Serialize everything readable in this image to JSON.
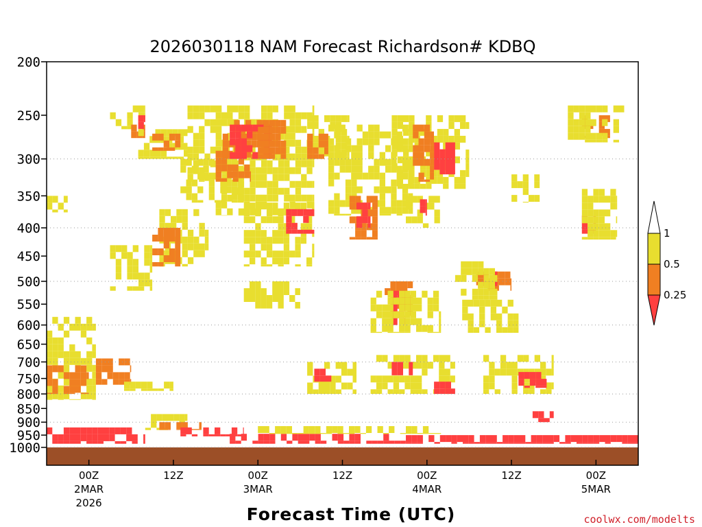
{
  "chart_data": {
    "type": "heatmap",
    "title": "2026030118 NAM Forecast Richardson# KDBQ",
    "xlabel": "Forecast Time (UTC)",
    "ylabel": "",
    "y_axis": {
      "scale": "log-pressure",
      "range": [
        1000,
        200
      ],
      "ticks": [
        "200",
        "250",
        "300",
        "350",
        "400",
        "450",
        "500",
        "550",
        "600",
        "650",
        "700",
        "750",
        "800",
        "850",
        "900",
        "950",
        "1000"
      ],
      "gridlines_at": [
        300,
        400,
        500,
        600,
        700,
        800,
        900,
        1000
      ]
    },
    "x_axis": {
      "range_hours": [
        -6,
        78
      ],
      "ticks": [
        {
          "hour": 0,
          "lines": [
            "00Z",
            "2MAR",
            "2026"
          ]
        },
        {
          "hour": 12,
          "lines": [
            "12Z"
          ]
        },
        {
          "hour": 24,
          "lines": [
            "00Z",
            "3MAR"
          ]
        },
        {
          "hour": 36,
          "lines": [
            "12Z"
          ]
        },
        {
          "hour": 48,
          "lines": [
            "00Z",
            "4MAR"
          ]
        },
        {
          "hour": 60,
          "lines": [
            "12Z"
          ]
        },
        {
          "hour": 72,
          "lines": [
            "00Z",
            "5MAR"
          ]
        }
      ]
    },
    "legend": {
      "placement": "right",
      "labels": [
        "1",
        "0.5",
        "0.25"
      ],
      "bins": [
        {
          "range": "< 0.25",
          "color": "#ff4040"
        },
        {
          "range": "0.25 - 0.5",
          "color": "#f07f22"
        },
        {
          "range": "0.5 - 1",
          "color": "#e8de2f"
        },
        {
          "range": "> 1",
          "color": "#ffffff"
        }
      ]
    },
    "colors": {
      "low": "#ff4040",
      "mid": "#f07f22",
      "high": "#e8de2f",
      "ground": "#9c4f27"
    },
    "regions": [
      {
        "bin": "high",
        "hour": [
          3,
          8
        ],
        "p": [
          240,
          265
        ]
      },
      {
        "bin": "mid",
        "hour": [
          6,
          8
        ],
        "p": [
          260,
          275
        ]
      },
      {
        "bin": "low",
        "hour": [
          7,
          8
        ],
        "p": [
          250,
          265
        ]
      },
      {
        "bin": "high",
        "hour": [
          7,
          14
        ],
        "p": [
          265,
          300
        ]
      },
      {
        "bin": "high",
        "hour": [
          13,
          22
        ],
        "p": [
          300,
          360
        ]
      },
      {
        "bin": "mid",
        "hour": [
          9,
          13
        ],
        "p": [
          270,
          290
        ]
      },
      {
        "bin": "high",
        "hour": [
          14,
          20
        ],
        "p": [
          240,
          330
        ]
      },
      {
        "bin": "high",
        "hour": [
          18,
          32
        ],
        "p": [
          240,
          380
        ]
      },
      {
        "bin": "mid",
        "hour": [
          19,
          25
        ],
        "p": [
          255,
          300
        ]
      },
      {
        "bin": "mid",
        "hour": [
          18,
          23
        ],
        "p": [
          290,
          330
        ]
      },
      {
        "bin": "low",
        "hour": [
          20,
          26
        ],
        "p": [
          260,
          300
        ]
      },
      {
        "bin": "mid",
        "hour": [
          24,
          28
        ],
        "p": [
          255,
          300
        ]
      },
      {
        "bin": "high",
        "hour": [
          31,
          37
        ],
        "p": [
          250,
          300
        ]
      },
      {
        "bin": "mid",
        "hour": [
          31,
          34
        ],
        "p": [
          270,
          300
        ]
      },
      {
        "bin": "high",
        "hour": [
          34,
          46
        ],
        "p": [
          260,
          380
        ]
      },
      {
        "bin": "mid",
        "hour": [
          37,
          41
        ],
        "p": [
          350,
          420
        ]
      },
      {
        "bin": "low",
        "hour": [
          38,
          40
        ],
        "p": [
          360,
          400
        ]
      },
      {
        "bin": "high",
        "hour": [
          43,
          54
        ],
        "p": [
          250,
          340
        ]
      },
      {
        "bin": "mid",
        "hour": [
          46,
          49
        ],
        "p": [
          260,
          330
        ]
      },
      {
        "bin": "low",
        "hour": [
          49,
          52
        ],
        "p": [
          280,
          320
        ]
      },
      {
        "bin": "high",
        "hour": [
          45,
          50
        ],
        "p": [
          350,
          400
        ]
      },
      {
        "bin": "low",
        "hour": [
          47,
          48
        ],
        "p": [
          355,
          380
        ]
      },
      {
        "bin": "high",
        "hour": [
          10,
          17
        ],
        "p": [
          370,
          470
        ]
      },
      {
        "bin": "mid",
        "hour": [
          9,
          13
        ],
        "p": [
          400,
          470
        ]
      },
      {
        "bin": "high",
        "hour": [
          3,
          9
        ],
        "p": [
          430,
          520
        ]
      },
      {
        "bin": "high",
        "hour": [
          -6,
          -3
        ],
        "p": [
          350,
          375
        ]
      },
      {
        "bin": "high",
        "hour": [
          22,
          32
        ],
        "p": [
          360,
          470
        ]
      },
      {
        "bin": "low",
        "hour": [
          28,
          32
        ],
        "p": [
          370,
          410
        ]
      },
      {
        "bin": "high",
        "hour": [
          22,
          30
        ],
        "p": [
          500,
          560
        ]
      },
      {
        "bin": "mid",
        "hour": [
          42,
          46
        ],
        "p": [
          500,
          580
        ]
      },
      {
        "bin": "low",
        "hour": [
          43,
          45
        ],
        "p": [
          520,
          600
        ]
      },
      {
        "bin": "high",
        "hour": [
          40,
          50
        ],
        "p": [
          520,
          620
        ]
      },
      {
        "bin": "mid",
        "hour": [
          55,
          60
        ],
        "p": [
          480,
          520
        ]
      },
      {
        "bin": "low",
        "hour": [
          56,
          58
        ],
        "p": [
          480,
          510
        ]
      },
      {
        "bin": "high",
        "hour": [
          52,
          58
        ],
        "p": [
          460,
          540
        ]
      },
      {
        "bin": "high",
        "hour": [
          53,
          61
        ],
        "p": [
          540,
          620
        ]
      },
      {
        "bin": "high",
        "hour": [
          60,
          64
        ],
        "p": [
          320,
          360
        ]
      },
      {
        "bin": "low",
        "hour": [
          70,
          72
        ],
        "p": [
          380,
          410
        ]
      },
      {
        "bin": "high",
        "hour": [
          70,
          75
        ],
        "p": [
          340,
          420
        ]
      },
      {
        "bin": "mid",
        "hour": [
          70,
          74
        ],
        "p": [
          250,
          275
        ]
      },
      {
        "bin": "high",
        "hour": [
          68,
          76
        ],
        "p": [
          240,
          280
        ]
      },
      {
        "bin": "high",
        "hour": [
          -6,
          1
        ],
        "p": [
          580,
          820
        ]
      },
      {
        "bin": "mid",
        "hour": [
          -6,
          0
        ],
        "p": [
          710,
          800
        ]
      },
      {
        "bin": "mid",
        "hour": [
          1,
          6
        ],
        "p": [
          690,
          770
        ]
      },
      {
        "bin": "high",
        "hour": [
          5,
          12
        ],
        "p": [
          760,
          790
        ]
      },
      {
        "bin": "high",
        "hour": [
          8,
          14
        ],
        "p": [
          870,
          930
        ]
      },
      {
        "bin": "mid",
        "hour": [
          10,
          16
        ],
        "p": [
          900,
          930
        ]
      },
      {
        "bin": "low",
        "hour": [
          13,
          22
        ],
        "p": [
          920,
          955
        ]
      },
      {
        "bin": "high",
        "hour": [
          31,
          38
        ],
        "p": [
          700,
          800
        ]
      },
      {
        "bin": "low",
        "hour": [
          32,
          36
        ],
        "p": [
          720,
          760
        ]
      },
      {
        "bin": "high",
        "hour": [
          40,
          52
        ],
        "p": [
          680,
          800
        ]
      },
      {
        "bin": "low",
        "hour": [
          43,
          46
        ],
        "p": [
          700,
          740
        ]
      },
      {
        "bin": "low",
        "hour": [
          49,
          52
        ],
        "p": [
          760,
          800
        ]
      },
      {
        "bin": "high",
        "hour": [
          56,
          66
        ],
        "p": [
          680,
          800
        ]
      },
      {
        "bin": "low",
        "hour": [
          61,
          65
        ],
        "p": [
          730,
          780
        ]
      },
      {
        "bin": "low",
        "hour": [
          63,
          66
        ],
        "p": [
          860,
          900
        ]
      },
      {
        "bin": "low",
        "hour": [
          -6,
          8
        ],
        "p": [
          920,
          985
        ]
      },
      {
        "bin": "low",
        "hour": [
          20,
          45
        ],
        "p": [
          945,
          985
        ]
      },
      {
        "bin": "low",
        "hour": [
          45,
          78
        ],
        "p": [
          950,
          985
        ]
      },
      {
        "bin": "high",
        "hour": [
          24,
          50
        ],
        "p": [
          915,
          945
        ]
      }
    ]
  },
  "credit": "coolwx.com/modelts"
}
